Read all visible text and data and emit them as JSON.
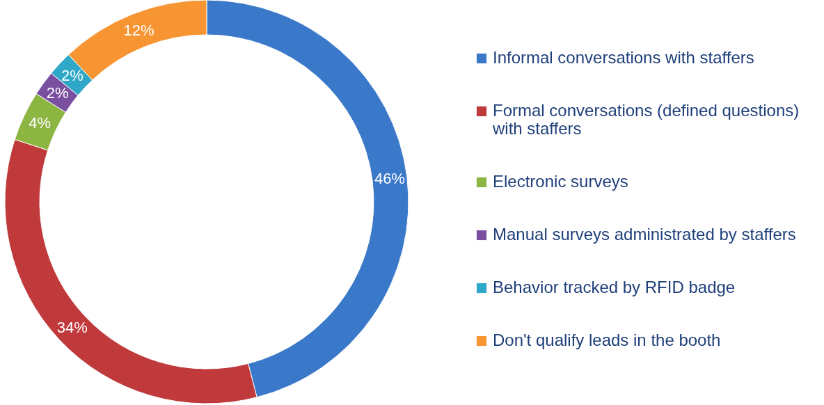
{
  "chart_data": {
    "type": "donut",
    "categories": [
      "Informal conversations with staffers",
      "Formal conversations (defined questions) with staffers",
      "Electronic surveys",
      "Manual surveys administrated by staffers",
      "Behavior tracked by RFID badge",
      "Don't qualify leads in the booth"
    ],
    "values": [
      46,
      34,
      4,
      2,
      2,
      12
    ],
    "value_labels": [
      "46%",
      "34%",
      "4%",
      "2%",
      "2%",
      "12%"
    ],
    "colors": [
      "#3a78c9",
      "#c0393b",
      "#8db542",
      "#7a4fa0",
      "#2fa8c8",
      "#f79533"
    ],
    "legend": "right"
  }
}
